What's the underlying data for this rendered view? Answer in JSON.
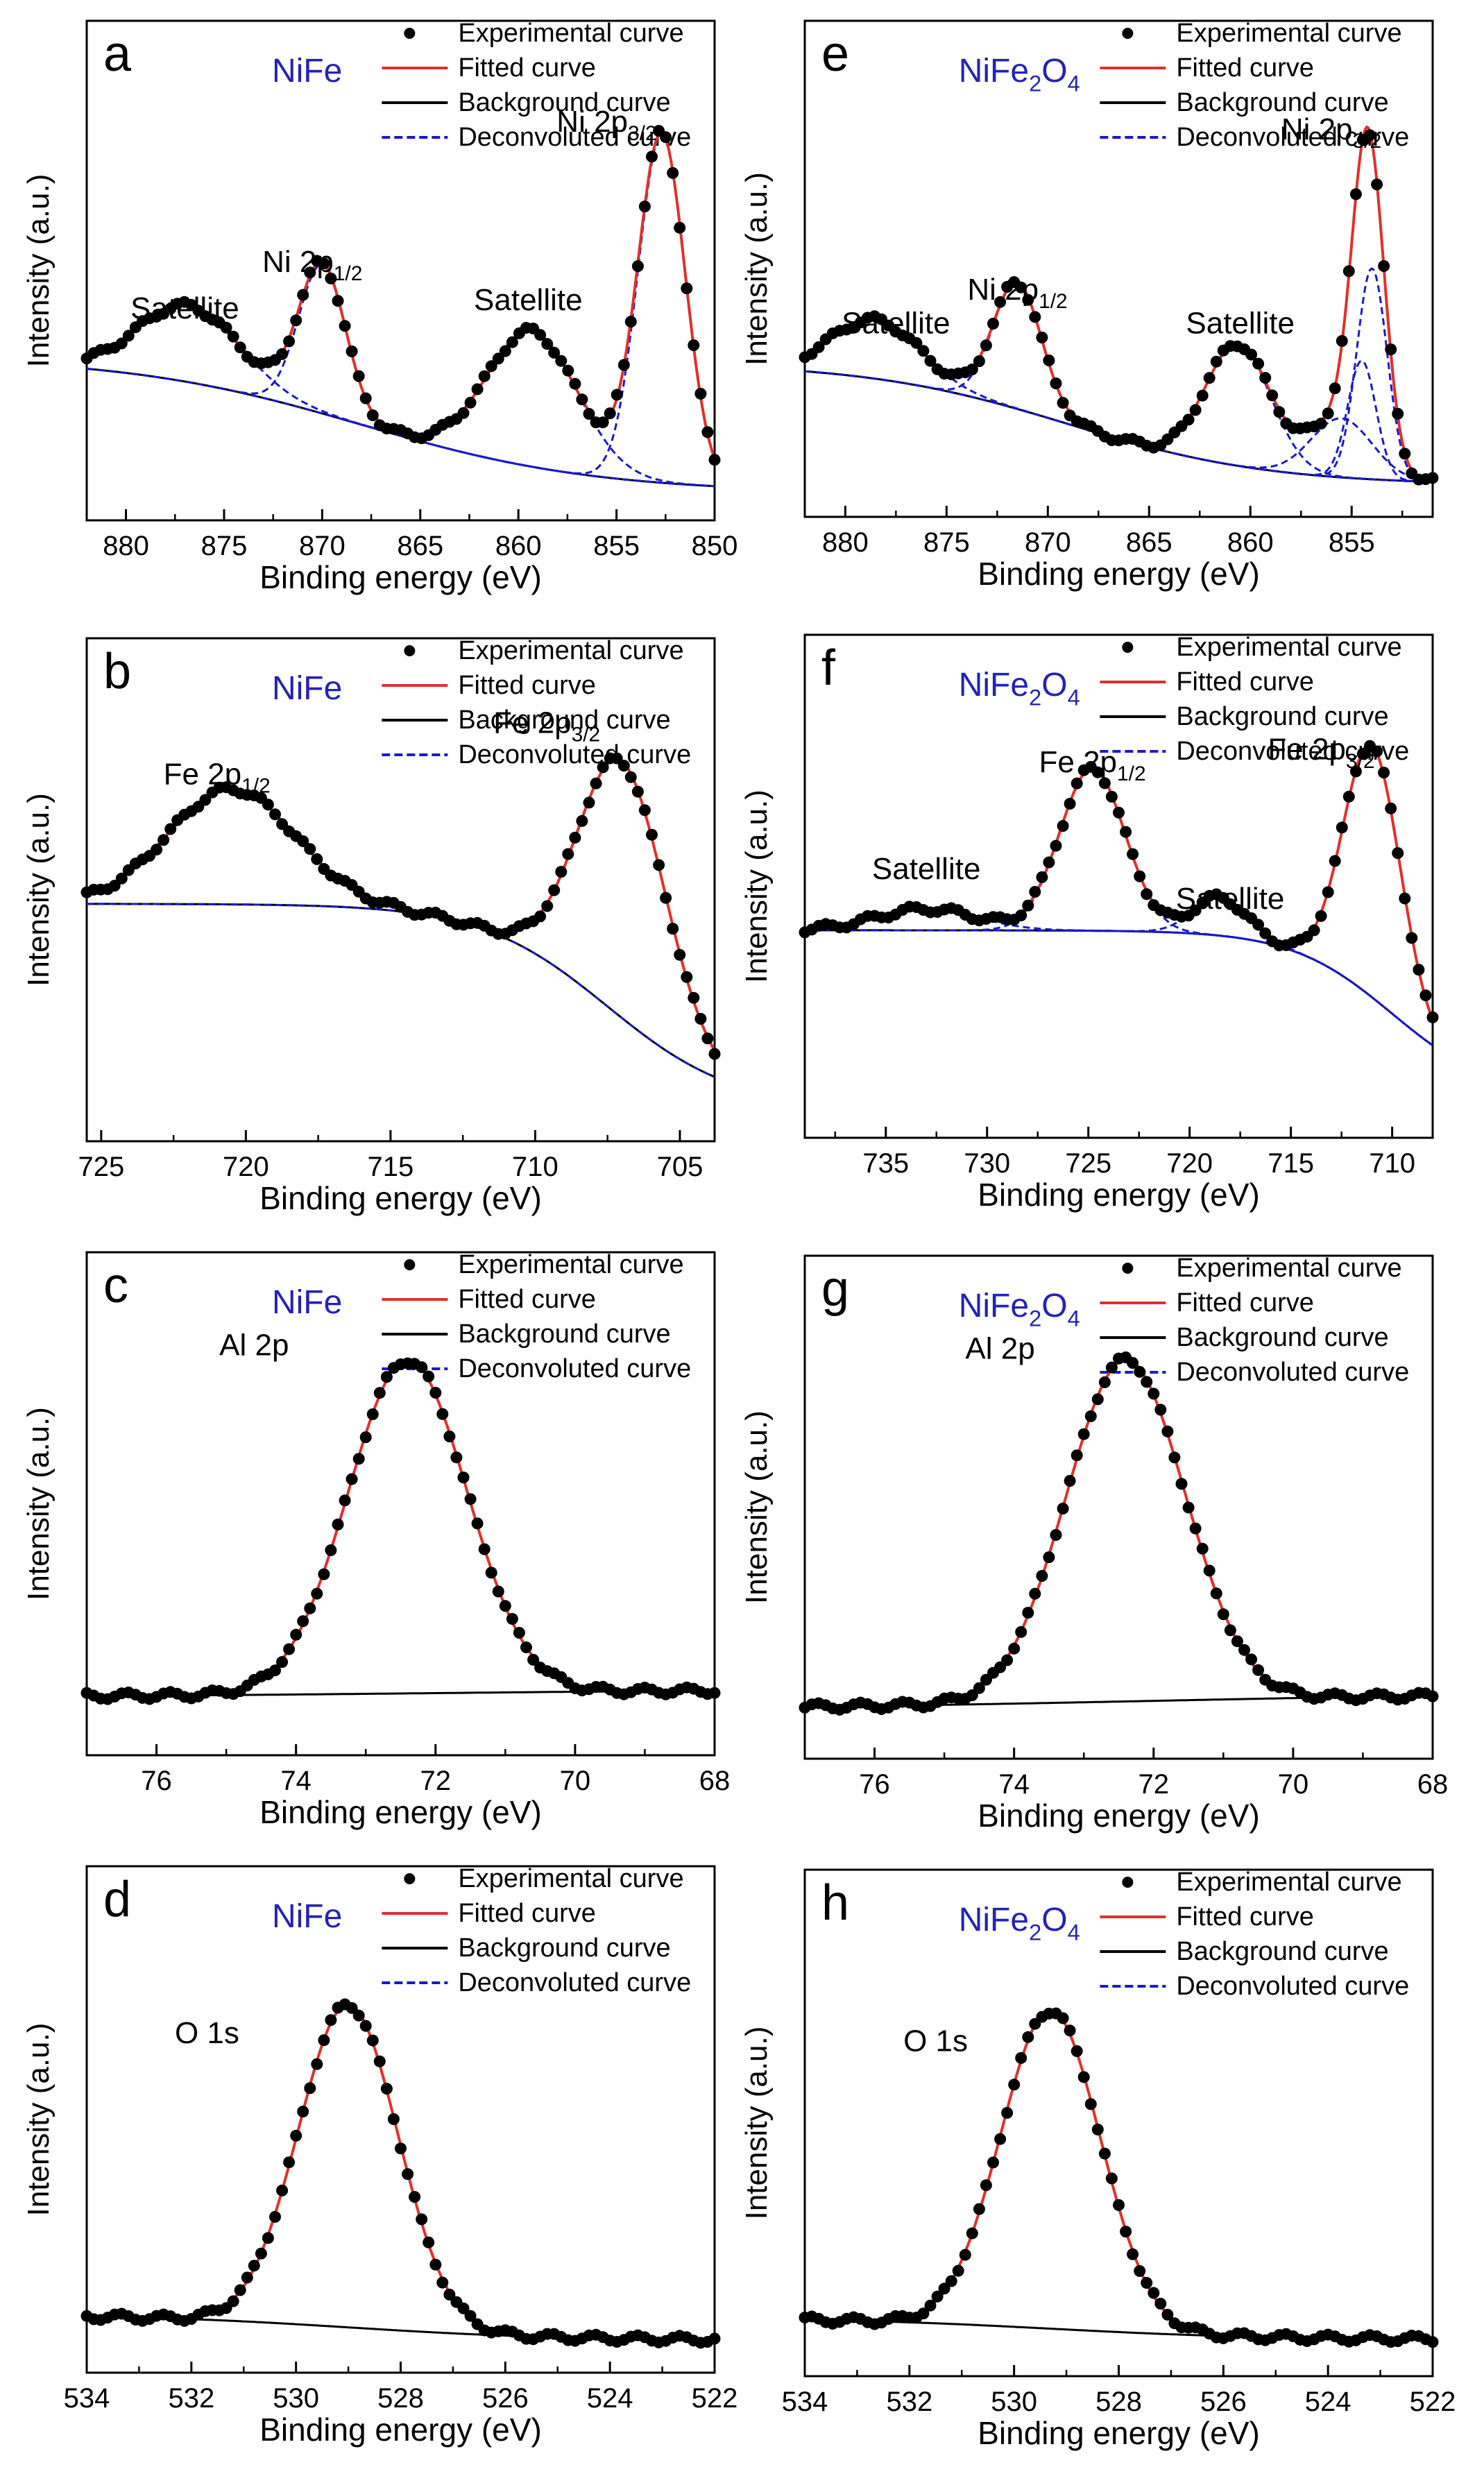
{
  "figure": {
    "legend_labels": [
      "Experimental curve",
      "Fitted curve",
      "Background curve",
      "Deconvoluted curve"
    ],
    "colors": {
      "experimental": "#000000",
      "fitted": "#e0302c",
      "background": "#000000",
      "deconvoluted": "#1a1ac8",
      "sample_label": "#2323b5"
    }
  },
  "chart_data": [
    {
      "panel": "a",
      "sample": "NiFe",
      "type": "line",
      "xlabel": "Binding energy (eV)",
      "ylabel": "Intensity (a.u.)",
      "xlim": [
        882,
        850
      ],
      "ylim": [
        0,
        100
      ],
      "xticks": [
        880,
        875,
        870,
        865,
        860,
        855,
        850
      ],
      "background": {
        "left": 35,
        "right": 3,
        "step_center": 868,
        "step_width": 6,
        "slope": 0.22
      },
      "peaks": [
        {
          "label": "Ni 2p3/2",
          "center": 852.7,
          "height": 82,
          "width": 1.2
        },
        {
          "label": "Satellite",
          "center": 859.3,
          "height": 32,
          "width": 2.3
        },
        {
          "label": "Ni 2p1/2",
          "center": 870.0,
          "height": 35,
          "width": 1.2
        },
        {
          "label": "Satellite",
          "center": 876.8,
          "height": 18,
          "width": 2.6
        }
      ],
      "annotations": [
        {
          "text": "Ni 2p",
          "sub": "3/2",
          "x": 855.5,
          "y": 88
        },
        {
          "text": "Satellite",
          "x": 877.0,
          "y": 44
        },
        {
          "text": "Ni 2p",
          "sub": "1/2",
          "x": 870.5,
          "y": 55
        },
        {
          "text": "Satellite",
          "x": 859.5,
          "y": 46
        }
      ]
    },
    {
      "panel": "b",
      "sample": "NiFe",
      "type": "line",
      "xlabel": "Binding energy (eV)",
      "ylabel": "Intensity (a.u.)",
      "xlim": [
        725.5,
        703.8
      ],
      "ylim": [
        0,
        100
      ],
      "xticks": [
        725,
        720,
        715,
        710,
        705
      ],
      "background": {
        "left": 52,
        "right": 4,
        "step_center": 707.5,
        "step_width": 2.2,
        "slope": 0.7
      },
      "peaks": [
        {
          "label": "Fe 2p3/2",
          "center": 707.0,
          "height": 60,
          "width": 1.5
        },
        {
          "label": "Fe 2p1/2",
          "center": 720.5,
          "height": 27,
          "width": 2.2
        }
      ],
      "annotations": [
        {
          "text": "Fe 2p",
          "sub": "3/2",
          "x": 709.6,
          "y": 92
        },
        {
          "text": "Fe 2p",
          "sub": "1/2",
          "x": 721.0,
          "y": 80
        }
      ]
    },
    {
      "panel": "c",
      "sample": "NiFe",
      "type": "line",
      "xlabel": "Binding energy (eV)",
      "ylabel": "Intensity (a.u.)",
      "xlim": [
        77,
        68
      ],
      "ylim": [
        0,
        100
      ],
      "xticks": [
        76,
        74,
        72,
        70,
        68
      ],
      "background": {
        "left": 10,
        "right": 12,
        "step_center": 72,
        "step_width": 3,
        "slope": 0.25
      },
      "peaks": [
        {
          "label": "Al 2p",
          "center": 72.4,
          "height": 78,
          "width": 0.85
        }
      ],
      "annotations": [
        {
          "text": "Al 2p",
          "x": 74.6,
          "y": 90
        }
      ]
    },
    {
      "panel": "d",
      "sample": "NiFe",
      "type": "line",
      "xlabel": "Binding energy (eV)",
      "ylabel": "Intensity (a.u.)",
      "xlim": [
        534,
        522
      ],
      "ylim": [
        0,
        100
      ],
      "xticks": [
        534,
        532,
        530,
        528,
        526,
        524,
        522
      ],
      "background": {
        "left": 10,
        "right": 4,
        "step_center": 529,
        "step_width": 2,
        "slope": 0.4
      },
      "peaks": [
        {
          "label": "O 1s",
          "center": 529.0,
          "height": 75,
          "width": 0.95
        }
      ],
      "annotations": [
        {
          "text": "O 1s",
          "x": 531.7,
          "y": 73
        }
      ]
    },
    {
      "panel": "e",
      "sample": "NiFe2O4",
      "type": "line",
      "xlabel": "Binding energy (eV)",
      "ylabel": "Intensity (a.u.)",
      "xlim": [
        882,
        851
      ],
      "ylim": [
        0,
        100
      ],
      "xticks": [
        880,
        875,
        870,
        865,
        860,
        855
      ],
      "background": {
        "left": 33,
        "right": 4,
        "step_center": 869,
        "step_width": 5,
        "slope": 0.2
      },
      "peaks": [
        {
          "label": "Ni 2p3/2",
          "center": 854.0,
          "height": 50,
          "width": 0.75
        },
        {
          "label": "Ni 2p3/2",
          "center": 854.5,
          "height": 28,
          "width": 0.7
        },
        {
          "label": "Ni 2p3/2",
          "center": 855.5,
          "height": 14,
          "width": 1.5
        },
        {
          "label": "Satellite",
          "center": 860.6,
          "height": 29,
          "width": 1.6
        },
        {
          "label": "Ni 2p1/2",
          "center": 871.5,
          "height": 30,
          "width": 1.2
        },
        {
          "label": "Satellite",
          "center": 878.5,
          "height": 14,
          "width": 2.2
        }
      ],
      "annotations": [
        {
          "text": "Ni 2p",
          "sub": "3/2",
          "x": 856.0,
          "y": 86
        },
        {
          "text": "Satellite",
          "x": 877.5,
          "y": 40
        },
        {
          "text": "Ni 2p",
          "sub": "1/2",
          "x": 871.5,
          "y": 48
        },
        {
          "text": "Satellite",
          "x": 860.5,
          "y": 40
        }
      ]
    },
    {
      "panel": "f",
      "sample": "NiFe2O4",
      "type": "line",
      "xlabel": "Binding energy (eV)",
      "ylabel": "Intensity (a.u.)",
      "xlim": [
        739,
        708
      ],
      "ylim": [
        0,
        100
      ],
      "xticks": [
        735,
        730,
        725,
        720,
        715,
        710
      ],
      "background": {
        "left": 45,
        "right": 6,
        "step_center": 710,
        "step_width": 2.5,
        "slope": 0.55
      },
      "peaks": [
        {
          "label": "Fe 2p3/2",
          "center": 711.0,
          "height": 59,
          "width": 1.4
        },
        {
          "label": "Satellite",
          "center": 718.5,
          "height": 9,
          "width": 1.3
        },
        {
          "label": "Fe 2p1/2",
          "center": 724.8,
          "height": 38,
          "width": 1.6
        },
        {
          "label": "Satellite",
          "center": 733.0,
          "height": 5,
          "width": 2.5
        }
      ],
      "annotations": [
        {
          "text": "Fe 2p",
          "sub": "3/2",
          "x": 713.5,
          "y": 85
        },
        {
          "text": "Fe 2p",
          "sub": "1/2",
          "x": 724.8,
          "y": 82
        },
        {
          "text": "Satellite",
          "x": 733.0,
          "y": 57
        },
        {
          "text": "Satellite",
          "x": 718.0,
          "y": 50
        }
      ]
    },
    {
      "panel": "g",
      "sample": "NiFe2O4",
      "type": "line",
      "xlabel": "Binding energy (eV)",
      "ylabel": "Intensity (a.u.)",
      "xlim": [
        77,
        68
      ],
      "ylim": [
        0,
        100
      ],
      "xticks": [
        76,
        74,
        72,
        70,
        68
      ],
      "background": {
        "left": 8,
        "right": 12,
        "step_center": 72,
        "step_width": 3,
        "slope": 0.25
      },
      "peaks": [
        {
          "label": "Al 2p",
          "center": 72.4,
          "height": 80,
          "width": 0.85
        }
      ],
      "annotations": [
        {
          "text": "Al 2p",
          "x": 74.2,
          "y": 90
        }
      ]
    },
    {
      "panel": "h",
      "sample": "NiFe2O4",
      "type": "line",
      "xlabel": "Binding energy (eV)",
      "ylabel": "Intensity (a.u.)",
      "xlim": [
        534,
        522
      ],
      "ylim": [
        0,
        100
      ],
      "xticks": [
        534,
        532,
        530,
        528,
        526,
        524,
        522
      ],
      "background": {
        "left": 10,
        "right": 5,
        "step_center": 529.3,
        "step_width": 2,
        "slope": 0.4
      },
      "peaks": [
        {
          "label": "O 1s",
          "center": 529.3,
          "height": 74,
          "width": 0.95
        }
      ],
      "annotations": [
        {
          "text": "O 1s",
          "x": 531.5,
          "y": 72
        }
      ]
    }
  ]
}
